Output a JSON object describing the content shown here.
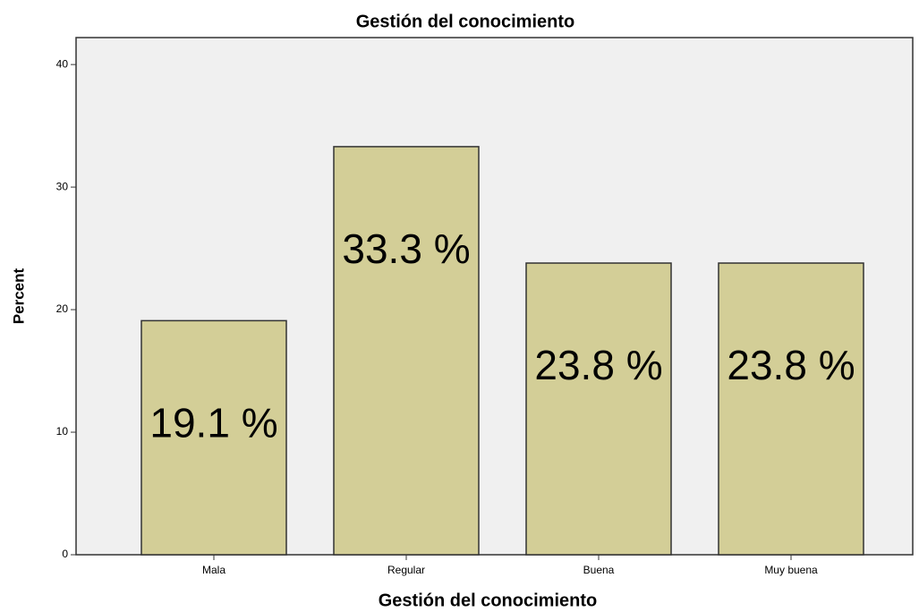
{
  "chart_data": {
    "type": "bar",
    "title": "Gestión del conocimiento",
    "x_label": "Gestión del conocimiento",
    "y_label": "Percent",
    "categories": [
      "Mala",
      "Regular",
      "Buena",
      "Muy buena"
    ],
    "values": [
      19.1,
      33.3,
      23.8,
      23.8
    ],
    "value_labels": [
      "19.1 %",
      "33.3 %",
      "23.8 %",
      "23.8 %"
    ],
    "color": "#d3ce97",
    "ylim": [
      0,
      42.2
    ],
    "yticks": [
      0,
      10,
      20,
      30,
      40
    ]
  }
}
